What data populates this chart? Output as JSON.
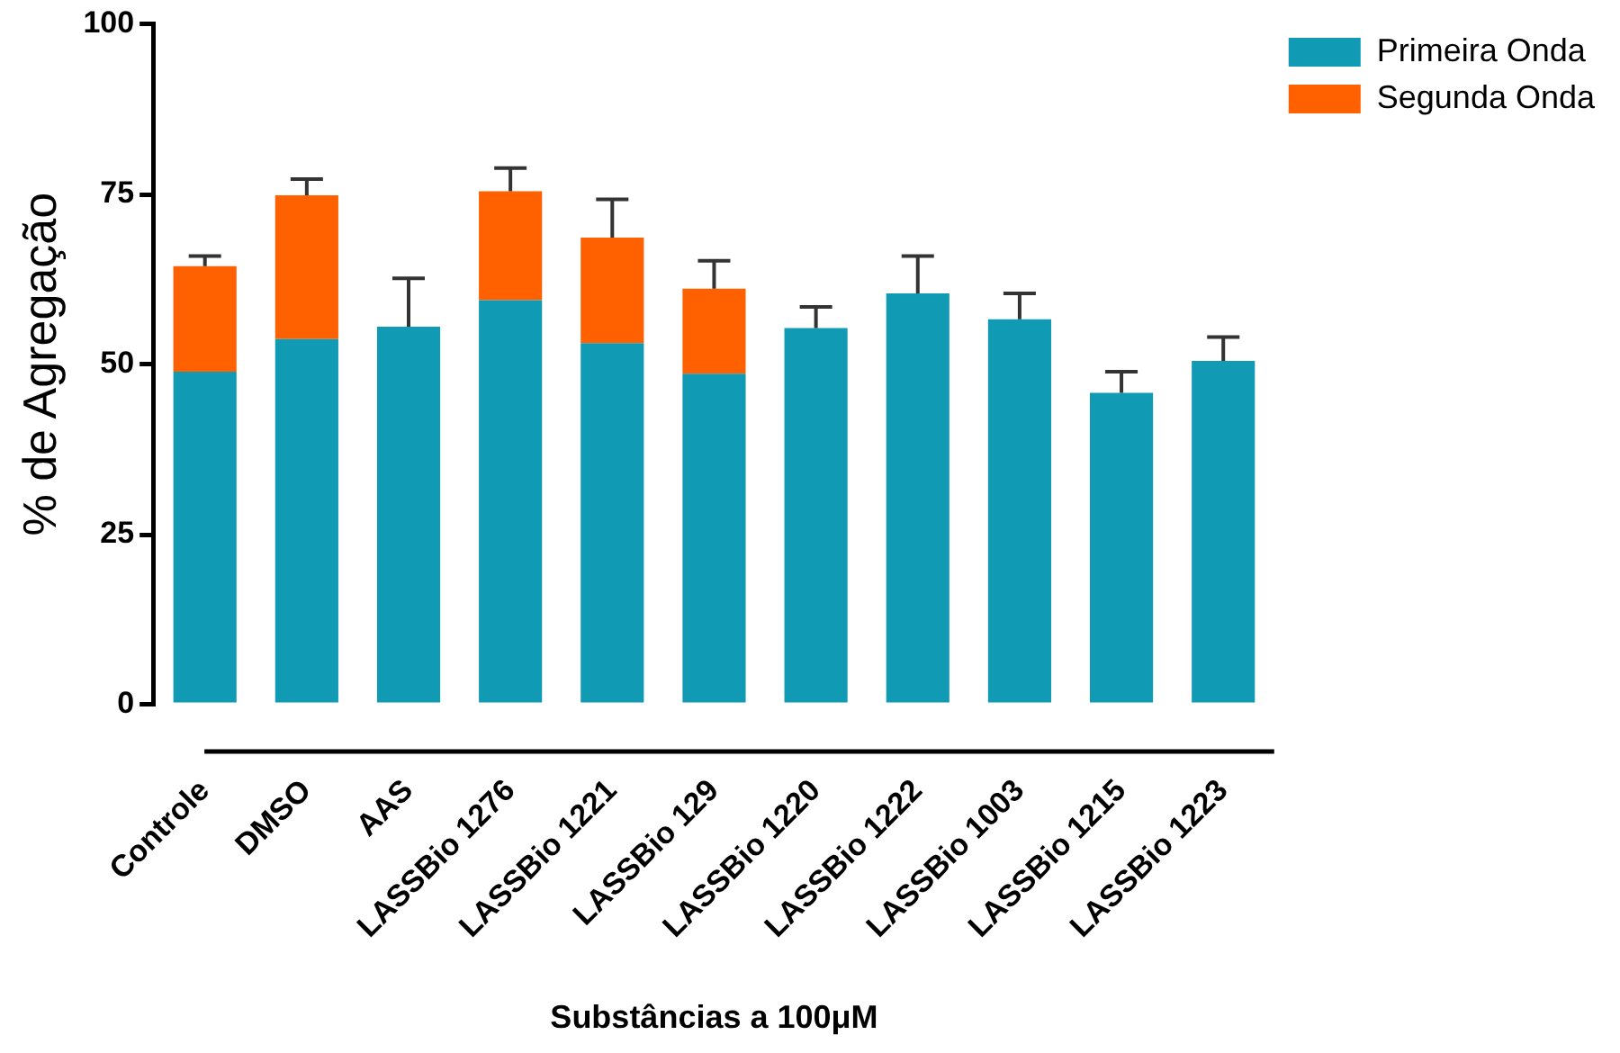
{
  "chart_data": {
    "type": "bar",
    "stacked": true,
    "xlabel": "Substâncias a 100μM",
    "ylabel": "% de Agregação",
    "categories": [
      "Controle",
      "DMSO",
      "AAS",
      "LASSBio 1276",
      "LASSBio 1221",
      "LASSBio 129",
      "LASSBio 1220",
      "LASSBio 1222",
      "LASSBio 1003",
      "LASSBio 1215",
      "LASSBio 1223"
    ],
    "series": [
      {
        "name": "Primeira Onda",
        "color": "#109ab3",
        "values": [
          48.9,
          53.7,
          55.5,
          59.4,
          53.1,
          48.6,
          55.3,
          60.4,
          56.6,
          45.8,
          50.5
        ],
        "errors": [
          null,
          null,
          7.1,
          null,
          null,
          null,
          3.1,
          5.5,
          3.8,
          3.1,
          3.5
        ]
      },
      {
        "name": "Segunda Onda",
        "color": "#ff6000",
        "values": [
          15.5,
          21.1,
          null,
          16.0,
          15.5,
          12.5,
          null,
          null,
          null,
          null,
          null
        ],
        "errors": [
          1.5,
          2.4,
          null,
          3.4,
          5.6,
          4.1,
          null,
          null,
          null,
          null,
          null
        ]
      }
    ],
    "ylim": [
      0,
      100
    ],
    "yticks": [
      0,
      25,
      50,
      75,
      100
    ],
    "grid": false,
    "legend": "top right"
  }
}
